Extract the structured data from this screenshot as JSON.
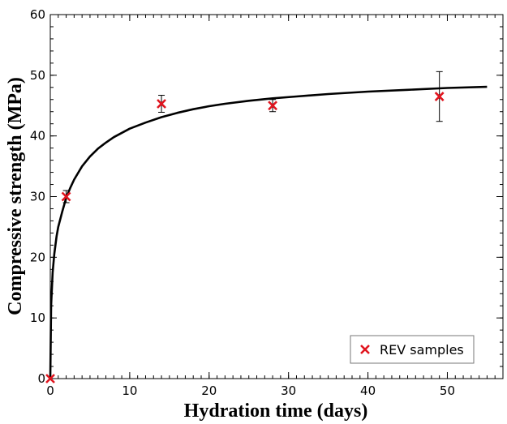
{
  "chart_data": {
    "type": "scatter",
    "xlabel": "Hydration time (days)",
    "ylabel": "Compressive strength (MPa)",
    "xlim": [
      0,
      57
    ],
    "ylim": [
      0,
      60
    ],
    "x_major_ticks": [
      0,
      10,
      20,
      30,
      40,
      50
    ],
    "y_major_ticks": [
      0,
      10,
      20,
      30,
      40,
      50,
      60
    ],
    "x_minor_step": 1,
    "y_minor_step": 2,
    "grid": false,
    "legend_position": "bottom-right",
    "series": [
      {
        "name": "REV samples",
        "marker": "x",
        "color": "#e0141e",
        "points": [
          {
            "x": 0,
            "y": 0,
            "err": 0
          },
          {
            "x": 2,
            "y": 30.0,
            "err": 1.0
          },
          {
            "x": 14,
            "y": 45.3,
            "err": 1.4
          },
          {
            "x": 28,
            "y": 45.0,
            "err": 1.0
          },
          {
            "x": 49,
            "y": 46.5,
            "err": 4.1
          }
        ]
      }
    ],
    "fit_curve": {
      "color": "#000000",
      "x": [
        0,
        0.1,
        0.3,
        0.5,
        0.8,
        1,
        1.5,
        2,
        2.5,
        3,
        4,
        5,
        6,
        7,
        8,
        10,
        12,
        14,
        16,
        18,
        20,
        22,
        25,
        28,
        31,
        35,
        40,
        45,
        50,
        55
      ],
      "y": [
        0,
        12.0,
        17.5,
        20.5,
        23.5,
        25.0,
        27.5,
        29.8,
        31.4,
        32.8,
        35.0,
        36.6,
        37.9,
        38.9,
        39.8,
        41.2,
        42.2,
        43.1,
        43.8,
        44.4,
        44.9,
        45.3,
        45.8,
        46.2,
        46.5,
        46.9,
        47.3,
        47.6,
        47.9,
        48.1
      ]
    }
  }
}
